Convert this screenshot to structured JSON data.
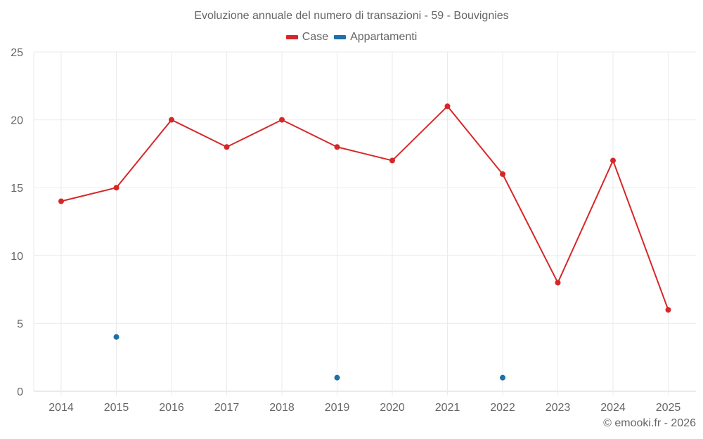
{
  "chart_data": {
    "type": "line",
    "title": "Evoluzione annuale del numero di transazioni - 59 - Bouvignies",
    "xlabel": "",
    "ylabel": "",
    "categories": [
      "2014",
      "2015",
      "2016",
      "2017",
      "2018",
      "2019",
      "2020",
      "2021",
      "2022",
      "2023",
      "2024",
      "2025"
    ],
    "series": [
      {
        "name": "Case",
        "color": "#d62728",
        "values": [
          14,
          15,
          20,
          18,
          20,
          18,
          17,
          21,
          16,
          8,
          17,
          6
        ]
      },
      {
        "name": "Appartamenti",
        "color": "#1f6fa8",
        "values": [
          null,
          4,
          null,
          null,
          null,
          1,
          null,
          null,
          1,
          null,
          null,
          null
        ]
      }
    ],
    "ylim": [
      0,
      25
    ],
    "yticks": [
      0,
      5,
      10,
      15,
      20,
      25
    ],
    "grid": true,
    "legend_position": "top"
  },
  "header": {
    "title": "Evoluzione annuale del numero di transazioni - 59 - Bouvignies"
  },
  "legend": {
    "items": [
      {
        "label": "Case",
        "color": "#d62728"
      },
      {
        "label": "Appartamenti",
        "color": "#1f6fa8"
      }
    ]
  },
  "footer": {
    "credit": "© emooki.fr - 2026"
  }
}
